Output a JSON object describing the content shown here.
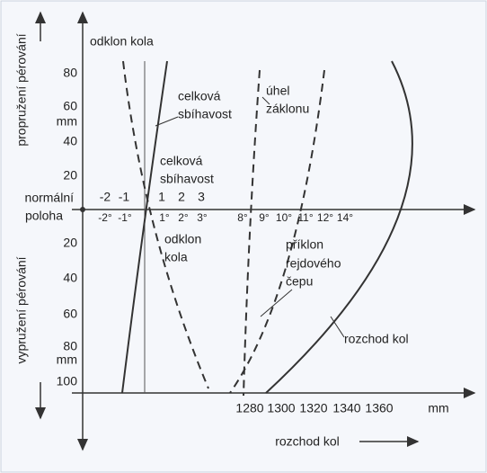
{
  "vertical_axis": {
    "upper_label": "propružení pérování",
    "lower_label": "vypružení pérování",
    "upper_ticks": [
      "80",
      "60",
      "mm",
      "40",
      "20"
    ],
    "zero_label": [
      "normální",
      "poloha"
    ],
    "lower_ticks": [
      "20",
      "40",
      "60",
      "80",
      "mm",
      "100"
    ]
  },
  "middle_axis": {
    "toe_ticks": [
      "-2",
      "-1",
      "1",
      "2",
      "3"
    ],
    "angle_ticks": [
      "-2°",
      "-1°",
      "1°",
      "2°",
      "3°",
      "8°",
      "9°",
      "10°",
      "11°",
      "12°",
      "14°"
    ]
  },
  "bottom_axis": {
    "ticks": [
      "1280",
      "1300",
      "1320",
      "1340",
      "1360",
      "mm"
    ],
    "label": "rozchod kol"
  },
  "annotations": {
    "camber_top": "odklon kola",
    "toe_top": [
      "celková",
      "sbíhavost"
    ],
    "toe_mid": [
      "celková",
      "sbíhavost"
    ],
    "caster": [
      "úhel",
      "záklonu"
    ],
    "camber_mid": [
      "odklon",
      "kola"
    ],
    "kingpin": [
      "příklon",
      "rejdového",
      "čepu"
    ],
    "track": "rozchod kol"
  }
}
